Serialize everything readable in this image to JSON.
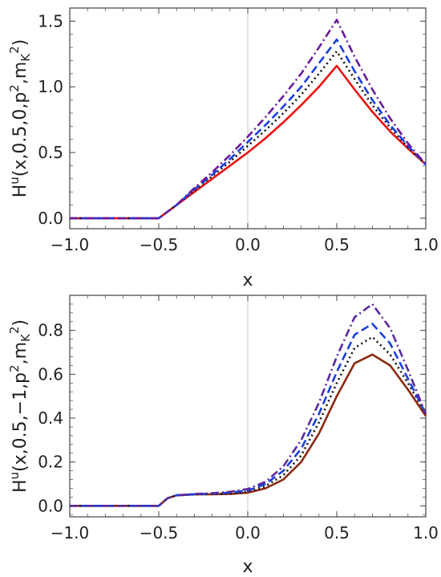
{
  "chart_data": [
    {
      "type": "line",
      "ylabel_parts": {
        "base": "H",
        "sup_u": "u",
        "args": "(x,0.5,0,p",
        "sup_2a": "2",
        "mid": ",m",
        "sub_K": "K",
        "sup_2b": "2",
        "end": ")"
      },
      "xlabel": "x",
      "xlim": [
        -1.0,
        1.0
      ],
      "ylim": [
        -0.08,
        1.6
      ],
      "xticks": [
        "-1.0",
        "-0.5",
        "0.0",
        "0.5",
        "1.0"
      ],
      "yticks": [
        "0.0",
        "0.5",
        "1.0",
        "1.5"
      ],
      "ytick_values": [
        0.0,
        0.5,
        1.0,
        1.5
      ],
      "xtick_values": [
        -1.0,
        -0.5,
        0.0,
        0.5,
        1.0
      ],
      "series": [
        {
          "color": "#ee1111",
          "dash": "solid",
          "x": [
            -1.0,
            -0.5,
            -0.4,
            -0.3,
            -0.2,
            -0.1,
            0.0,
            0.1,
            0.2,
            0.3,
            0.4,
            0.5,
            0.6,
            0.7,
            0.8,
            0.9,
            1.0
          ],
          "y": [
            0.0,
            0.0,
            0.1,
            0.2,
            0.3,
            0.4,
            0.5,
            0.61,
            0.73,
            0.86,
            1.0,
            1.16,
            0.98,
            0.81,
            0.66,
            0.53,
            0.41
          ]
        },
        {
          "color": "#111111",
          "dash": "dot",
          "x": [
            -1.0,
            -0.5,
            -0.4,
            -0.3,
            -0.2,
            -0.1,
            0.0,
            0.1,
            0.2,
            0.3,
            0.4,
            0.5,
            0.6,
            0.7,
            0.8,
            0.9,
            1.0
          ],
          "y": [
            0.0,
            0.0,
            0.1,
            0.21,
            0.32,
            0.43,
            0.55,
            0.67,
            0.8,
            0.94,
            1.1,
            1.27,
            1.06,
            0.86,
            0.69,
            0.54,
            0.41
          ]
        },
        {
          "color": "#1a3fdd",
          "dash": "dash",
          "x": [
            -1.0,
            -0.5,
            -0.4,
            -0.3,
            -0.2,
            -0.1,
            0.0,
            0.1,
            0.2,
            0.3,
            0.4,
            0.5,
            0.6,
            0.7,
            0.8,
            0.9,
            1.0
          ],
          "y": [
            0.0,
            0.0,
            0.1,
            0.22,
            0.33,
            0.45,
            0.58,
            0.71,
            0.85,
            1.0,
            1.18,
            1.36,
            1.12,
            0.9,
            0.71,
            0.55,
            0.41
          ]
        },
        {
          "color": "#6a1a9a",
          "dash": "dashdot",
          "x": [
            -1.0,
            -0.5,
            -0.4,
            -0.3,
            -0.2,
            -0.1,
            0.0,
            0.1,
            0.2,
            0.3,
            0.4,
            0.5,
            0.6,
            0.7,
            0.8,
            0.9,
            1.0
          ],
          "y": [
            0.0,
            0.0,
            0.1,
            0.23,
            0.35,
            0.48,
            0.62,
            0.77,
            0.93,
            1.1,
            1.3,
            1.51,
            1.23,
            0.98,
            0.76,
            0.57,
            0.41
          ]
        }
      ]
    },
    {
      "type": "line",
      "ylabel_parts": {
        "base": "H",
        "sup_u": "u",
        "args": "(x,0.5,−1,p",
        "sup_2a": "2",
        "mid": ",m",
        "sub_K": "K",
        "sup_2b": "2",
        "end": ")"
      },
      "xlabel": "x",
      "xlim": [
        -1.0,
        1.0
      ],
      "ylim": [
        -0.05,
        0.96
      ],
      "xticks": [
        "-1.0",
        "-0.5",
        "0.0",
        "0.5",
        "1.0"
      ],
      "yticks": [
        "0.0",
        "0.2",
        "0.4",
        "0.6",
        "0.8"
      ],
      "ytick_values": [
        0.0,
        0.2,
        0.4,
        0.6,
        0.8
      ],
      "xtick_values": [
        -1.0,
        -0.5,
        0.0,
        0.5,
        1.0
      ],
      "series": [
        {
          "color": "#8a2a10",
          "dash": "solid",
          "x": [
            -1.0,
            -0.5,
            -0.45,
            -0.4,
            -0.3,
            -0.2,
            -0.1,
            0.0,
            0.1,
            0.2,
            0.3,
            0.4,
            0.5,
            0.6,
            0.7,
            0.8,
            0.9,
            1.0
          ],
          "y": [
            0.0,
            0.0,
            0.035,
            0.048,
            0.052,
            0.053,
            0.054,
            0.06,
            0.08,
            0.12,
            0.2,
            0.33,
            0.5,
            0.65,
            0.69,
            0.64,
            0.53,
            0.41
          ]
        },
        {
          "color": "#111111",
          "dash": "dot",
          "x": [
            -1.0,
            -0.5,
            -0.45,
            -0.4,
            -0.3,
            -0.2,
            -0.1,
            0.0,
            0.1,
            0.2,
            0.3,
            0.4,
            0.5,
            0.6,
            0.7,
            0.8,
            0.9,
            1.0
          ],
          "y": [
            0.0,
            0.0,
            0.035,
            0.048,
            0.052,
            0.054,
            0.057,
            0.065,
            0.09,
            0.14,
            0.23,
            0.38,
            0.56,
            0.72,
            0.77,
            0.69,
            0.56,
            0.42
          ]
        },
        {
          "color": "#1a3fdd",
          "dash": "dash",
          "x": [
            -1.0,
            -0.5,
            -0.45,
            -0.4,
            -0.3,
            -0.2,
            -0.1,
            0.0,
            0.1,
            0.2,
            0.3,
            0.4,
            0.5,
            0.6,
            0.7,
            0.8,
            0.9,
            1.0
          ],
          "y": [
            0.0,
            0.0,
            0.035,
            0.048,
            0.053,
            0.056,
            0.06,
            0.07,
            0.1,
            0.16,
            0.26,
            0.42,
            0.61,
            0.78,
            0.83,
            0.74,
            0.58,
            0.42
          ]
        },
        {
          "color": "#5a2a9a",
          "dash": "dashdot",
          "x": [
            -1.0,
            -0.5,
            -0.45,
            -0.4,
            -0.3,
            -0.2,
            -0.1,
            0.0,
            0.1,
            0.2,
            0.3,
            0.4,
            0.5,
            0.6,
            0.7,
            0.8,
            0.9,
            1.0
          ],
          "y": [
            0.0,
            0.0,
            0.035,
            0.048,
            0.054,
            0.058,
            0.064,
            0.077,
            0.11,
            0.18,
            0.3,
            0.47,
            0.68,
            0.86,
            0.92,
            0.81,
            0.62,
            0.42
          ]
        }
      ]
    }
  ]
}
